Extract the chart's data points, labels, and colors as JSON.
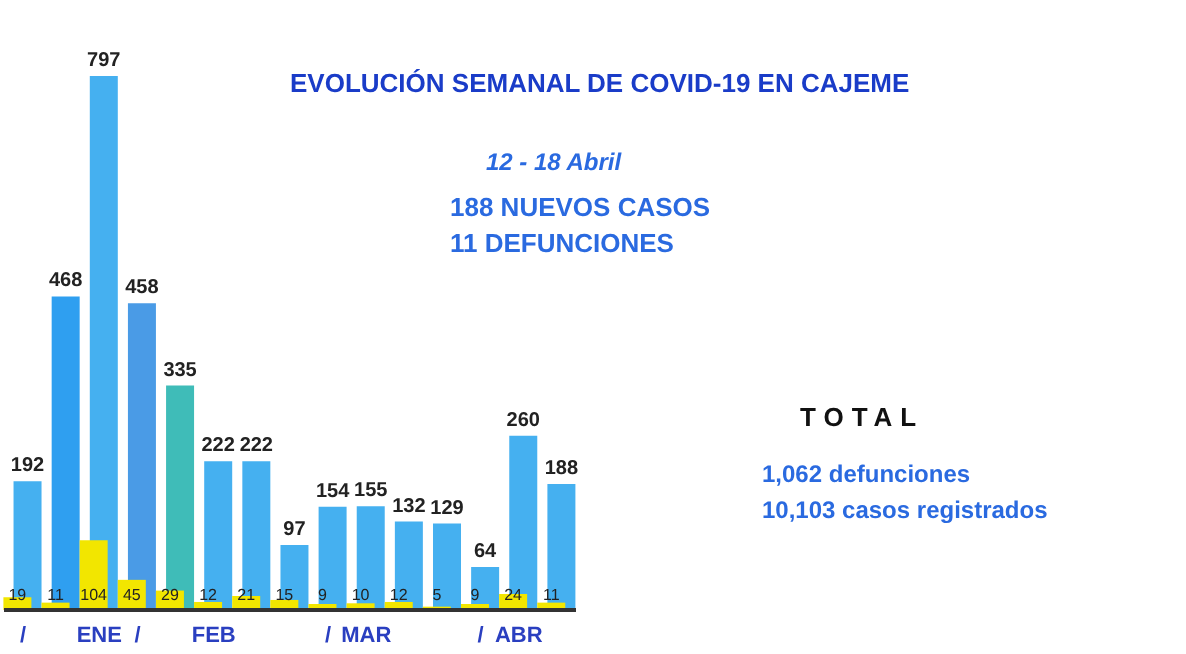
{
  "chart_data": {
    "type": "bar",
    "title": "EVOLUCIÓN SEMANAL DE COVID-19 EN CAJEME",
    "subtitle": "12 - 18 Abril",
    "categories": [
      "/",
      null,
      "ENE",
      "/",
      null,
      "FEB",
      null,
      null,
      "/",
      "MAR",
      null,
      null,
      "/",
      "ABR",
      null
    ],
    "series": [
      {
        "color": "#45b0f0",
        "colors": [
          "#45b0f0",
          "#2f9ff0",
          "#45b0f0",
          "#4a9be6",
          "#3fbcb8",
          "#45b0f0",
          "#45b0f0",
          "#45b0f0",
          "#45b0f0",
          "#45b0f0",
          "#45b0f0",
          "#45b0f0",
          "#45b0f0",
          "#45b0f0",
          "#45b0f0"
        ],
        "values": [
          192,
          468,
          797,
          458,
          335,
          222,
          222,
          97,
          154,
          155,
          132,
          129,
          64,
          260,
          188
        ]
      },
      {
        "color": "#f2e600",
        "values": [
          19,
          11,
          104,
          45,
          29,
          12,
          21,
          15,
          9,
          10,
          12,
          5,
          9,
          24,
          11
        ]
      }
    ],
    "data_labels": true,
    "annotations": [
      "188 NUEVOS CASOS",
      "11 DEFUNCIONES",
      "TOTAL",
      "1,062 defunciones",
      "10,103 casos registrados"
    ]
  }
}
